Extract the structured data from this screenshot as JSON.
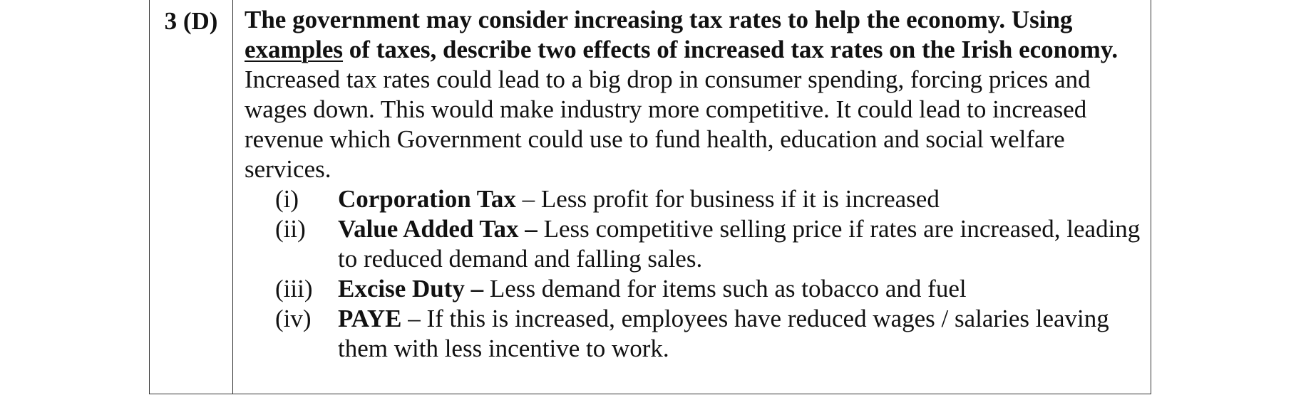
{
  "question_number": "3 (D)",
  "question": {
    "part1": "The government may consider increasing tax rates to help the economy. Using",
    "underlined": "examples",
    "part2": "of taxes, describe two effects of increased tax rates on the Irish economy."
  },
  "answer_intro": "Increased tax rates could lead to a big drop in consumer spending, forcing prices and wages down.  This would make industry more competitive.  It could lead to increased revenue which Government could use to fund health, education and social welfare services.",
  "taxes": [
    {
      "marker": "(i)",
      "name": "Corporation Tax",
      "separator": "–",
      "effect": "Less profit for business if it is increased"
    },
    {
      "marker": "(ii)",
      "name": "Value Added Tax –",
      "separator": "",
      "effect": "Less competitive selling price if rates are increased, leading to reduced demand and falling sales."
    },
    {
      "marker": "(iii)",
      "name": "Excise Duty –",
      "separator": "",
      "effect": "Less demand for items such as tobacco and fuel"
    },
    {
      "marker": "(iv)",
      "name": "PAYE",
      "separator": "–",
      "effect": "If this is increased, employees have reduced wages / salaries leaving them with less incentive to work."
    }
  ]
}
